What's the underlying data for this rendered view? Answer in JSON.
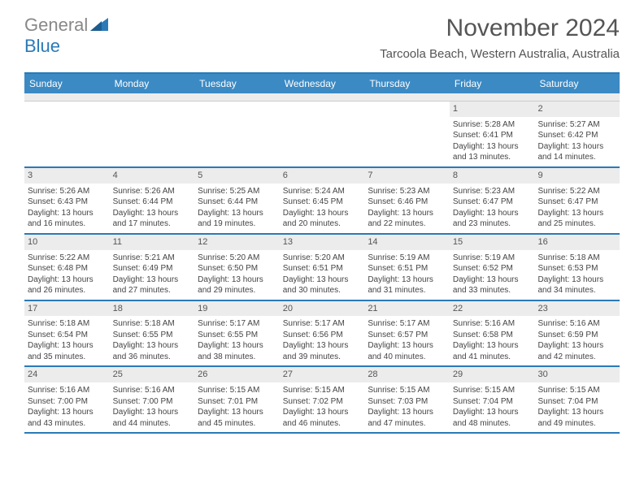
{
  "logo": {
    "gray": "General",
    "blue": "Blue"
  },
  "title": "November 2024",
  "location": "Tarcoola Beach, Western Australia, Australia",
  "colors": {
    "header_bg": "#3b8ac4",
    "accent_border": "#2a7ab8",
    "daynum_bg": "#ececec",
    "text": "#444444"
  },
  "dayNames": [
    "Sunday",
    "Monday",
    "Tuesday",
    "Wednesday",
    "Thursday",
    "Friday",
    "Saturday"
  ],
  "weeks": [
    [
      null,
      null,
      null,
      null,
      null,
      {
        "n": "1",
        "sr": "5:28 AM",
        "ss": "6:41 PM",
        "dl": "13 hours and 13 minutes."
      },
      {
        "n": "2",
        "sr": "5:27 AM",
        "ss": "6:42 PM",
        "dl": "13 hours and 14 minutes."
      }
    ],
    [
      {
        "n": "3",
        "sr": "5:26 AM",
        "ss": "6:43 PM",
        "dl": "13 hours and 16 minutes."
      },
      {
        "n": "4",
        "sr": "5:26 AM",
        "ss": "6:44 PM",
        "dl": "13 hours and 17 minutes."
      },
      {
        "n": "5",
        "sr": "5:25 AM",
        "ss": "6:44 PM",
        "dl": "13 hours and 19 minutes."
      },
      {
        "n": "6",
        "sr": "5:24 AM",
        "ss": "6:45 PM",
        "dl": "13 hours and 20 minutes."
      },
      {
        "n": "7",
        "sr": "5:23 AM",
        "ss": "6:46 PM",
        "dl": "13 hours and 22 minutes."
      },
      {
        "n": "8",
        "sr": "5:23 AM",
        "ss": "6:47 PM",
        "dl": "13 hours and 23 minutes."
      },
      {
        "n": "9",
        "sr": "5:22 AM",
        "ss": "6:47 PM",
        "dl": "13 hours and 25 minutes."
      }
    ],
    [
      {
        "n": "10",
        "sr": "5:22 AM",
        "ss": "6:48 PM",
        "dl": "13 hours and 26 minutes."
      },
      {
        "n": "11",
        "sr": "5:21 AM",
        "ss": "6:49 PM",
        "dl": "13 hours and 27 minutes."
      },
      {
        "n": "12",
        "sr": "5:20 AM",
        "ss": "6:50 PM",
        "dl": "13 hours and 29 minutes."
      },
      {
        "n": "13",
        "sr": "5:20 AM",
        "ss": "6:51 PM",
        "dl": "13 hours and 30 minutes."
      },
      {
        "n": "14",
        "sr": "5:19 AM",
        "ss": "6:51 PM",
        "dl": "13 hours and 31 minutes."
      },
      {
        "n": "15",
        "sr": "5:19 AM",
        "ss": "6:52 PM",
        "dl": "13 hours and 33 minutes."
      },
      {
        "n": "16",
        "sr": "5:18 AM",
        "ss": "6:53 PM",
        "dl": "13 hours and 34 minutes."
      }
    ],
    [
      {
        "n": "17",
        "sr": "5:18 AM",
        "ss": "6:54 PM",
        "dl": "13 hours and 35 minutes."
      },
      {
        "n": "18",
        "sr": "5:18 AM",
        "ss": "6:55 PM",
        "dl": "13 hours and 36 minutes."
      },
      {
        "n": "19",
        "sr": "5:17 AM",
        "ss": "6:55 PM",
        "dl": "13 hours and 38 minutes."
      },
      {
        "n": "20",
        "sr": "5:17 AM",
        "ss": "6:56 PM",
        "dl": "13 hours and 39 minutes."
      },
      {
        "n": "21",
        "sr": "5:17 AM",
        "ss": "6:57 PM",
        "dl": "13 hours and 40 minutes."
      },
      {
        "n": "22",
        "sr": "5:16 AM",
        "ss": "6:58 PM",
        "dl": "13 hours and 41 minutes."
      },
      {
        "n": "23",
        "sr": "5:16 AM",
        "ss": "6:59 PM",
        "dl": "13 hours and 42 minutes."
      }
    ],
    [
      {
        "n": "24",
        "sr": "5:16 AM",
        "ss": "7:00 PM",
        "dl": "13 hours and 43 minutes."
      },
      {
        "n": "25",
        "sr": "5:16 AM",
        "ss": "7:00 PM",
        "dl": "13 hours and 44 minutes."
      },
      {
        "n": "26",
        "sr": "5:15 AM",
        "ss": "7:01 PM",
        "dl": "13 hours and 45 minutes."
      },
      {
        "n": "27",
        "sr": "5:15 AM",
        "ss": "7:02 PM",
        "dl": "13 hours and 46 minutes."
      },
      {
        "n": "28",
        "sr": "5:15 AM",
        "ss": "7:03 PM",
        "dl": "13 hours and 47 minutes."
      },
      {
        "n": "29",
        "sr": "5:15 AM",
        "ss": "7:04 PM",
        "dl": "13 hours and 48 minutes."
      },
      {
        "n": "30",
        "sr": "5:15 AM",
        "ss": "7:04 PM",
        "dl": "13 hours and 49 minutes."
      }
    ]
  ],
  "labels": {
    "sunrise": "Sunrise:",
    "sunset": "Sunset:",
    "daylight": "Daylight:"
  }
}
